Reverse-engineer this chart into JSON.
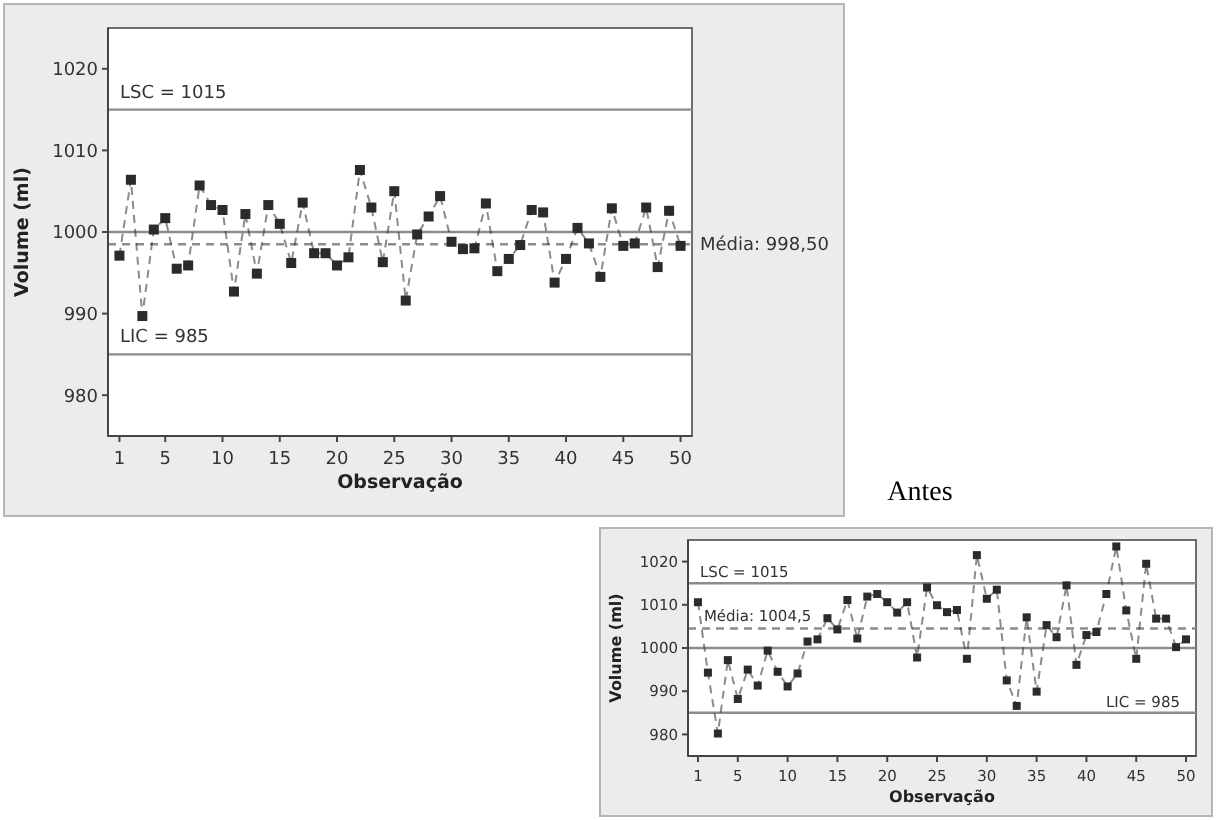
{
  "chart_data": [
    {
      "type": "line",
      "xlabel": "Observação",
      "ylabel": "Volume (ml)",
      "annotations": [
        "Antes"
      ],
      "marker": "square",
      "line_style": "dashed",
      "grid": false,
      "x": [
        1,
        2,
        3,
        4,
        5,
        6,
        7,
        8,
        9,
        10,
        11,
        12,
        13,
        14,
        15,
        16,
        17,
        18,
        19,
        20,
        21,
        22,
        23,
        24,
        25,
        26,
        27,
        28,
        29,
        30,
        31,
        32,
        33,
        34,
        35,
        36,
        37,
        38,
        39,
        40,
        41,
        42,
        43,
        44,
        45,
        46,
        47,
        48,
        49,
        50
      ],
      "xlim": [
        0,
        51
      ],
      "xticks": [
        1,
        5,
        10,
        15,
        20,
        25,
        30,
        35,
        40,
        45,
        50
      ],
      "ylim": [
        975,
        1025
      ],
      "yticks": [
        980,
        990,
        1000,
        1010,
        1020
      ],
      "series": [
        {
          "color": "#2b2b2b",
          "values": [
            997.1,
            1006.4,
            989.7,
            1000.3,
            1001.7,
            995.5,
            995.9,
            1005.7,
            1003.3,
            1002.7,
            992.7,
            1002.2,
            994.9,
            1003.3,
            1001.0,
            996.2,
            1003.6,
            997.4,
            997.4,
            995.9,
            996.9,
            1007.6,
            1003.0,
            996.3,
            1005.0,
            991.6,
            999.7,
            1001.9,
            1004.4,
            998.8,
            997.9,
            998.0,
            1003.5,
            995.2,
            996.7,
            998.4,
            1002.7,
            1002.4,
            993.8,
            996.7,
            1000.5,
            998.6,
            994.5,
            1002.9,
            998.3,
            998.6,
            1003.0,
            995.7,
            1002.6,
            998.3
          ]
        }
      ],
      "ref_lines": [
        {
          "axis": "y",
          "value": 1015,
          "label": "LSC = 1015",
          "line_style": "solid",
          "color": "#8c8c8c"
        },
        {
          "axis": "y",
          "value": 1000,
          "line_style": "solid",
          "color": "#8c8c8c"
        },
        {
          "axis": "y",
          "value": 998.5,
          "label": "Média: 998,50",
          "line_style": "dashed",
          "color": "#8c8c8c"
        },
        {
          "axis": "y",
          "value": 985,
          "label": "LIC = 985",
          "line_style": "solid",
          "color": "#8c8c8c"
        }
      ]
    },
    {
      "type": "line",
      "xlabel": "Observação",
      "ylabel": "Volume (ml)",
      "marker": "square",
      "line_style": "dashed",
      "grid": false,
      "x": [
        1,
        2,
        3,
        4,
        5,
        6,
        7,
        8,
        9,
        10,
        11,
        12,
        13,
        14,
        15,
        16,
        17,
        18,
        19,
        20,
        21,
        22,
        23,
        24,
        25,
        26,
        27,
        28,
        29,
        30,
        31,
        32,
        33,
        34,
        35,
        36,
        37,
        38,
        39,
        40,
        41,
        42,
        43,
        44,
        45,
        46,
        47,
        48,
        49,
        50
      ],
      "xlim": [
        0,
        51
      ],
      "xticks": [
        1,
        5,
        10,
        15,
        20,
        25,
        30,
        35,
        40,
        45,
        50
      ],
      "ylim": [
        975,
        1025
      ],
      "yticks": [
        980,
        990,
        1000,
        1010,
        1020
      ],
      "series": [
        {
          "color": "#2b2b2b",
          "values": [
            1010.6,
            994.3,
            980.2,
            997.2,
            988.2,
            995.0,
            991.3,
            999.4,
            994.5,
            991.1,
            994.1,
            1001.5,
            1002.0,
            1006.9,
            1004.3,
            1011.1,
            1002.2,
            1011.9,
            1012.5,
            1010.6,
            1008.2,
            1010.6,
            997.8,
            1014.0,
            1009.9,
            1008.3,
            1008.8,
            997.5,
            1021.5,
            1011.4,
            1013.5,
            992.5,
            986.6,
            1007.1,
            989.9,
            1005.3,
            1002.5,
            1014.5,
            996.1,
            1003.0,
            1003.7,
            1012.5,
            1023.5,
            1008.7,
            997.5,
            1019.5,
            1006.8,
            1006.8,
            1000.2,
            1002.0
          ]
        }
      ],
      "ref_lines": [
        {
          "axis": "y",
          "value": 1015,
          "label": "LSC = 1015",
          "line_style": "solid",
          "color": "#8c8c8c"
        },
        {
          "axis": "y",
          "value": 1000,
          "line_style": "solid",
          "color": "#8c8c8c"
        },
        {
          "axis": "y",
          "value": 1004.5,
          "label": "Média: 1004,5",
          "line_style": "dashed",
          "color": "#8c8c8c"
        },
        {
          "axis": "y",
          "value": 985,
          "label": "LIC = 985",
          "line_style": "solid",
          "color": "#8c8c8c"
        }
      ]
    }
  ]
}
